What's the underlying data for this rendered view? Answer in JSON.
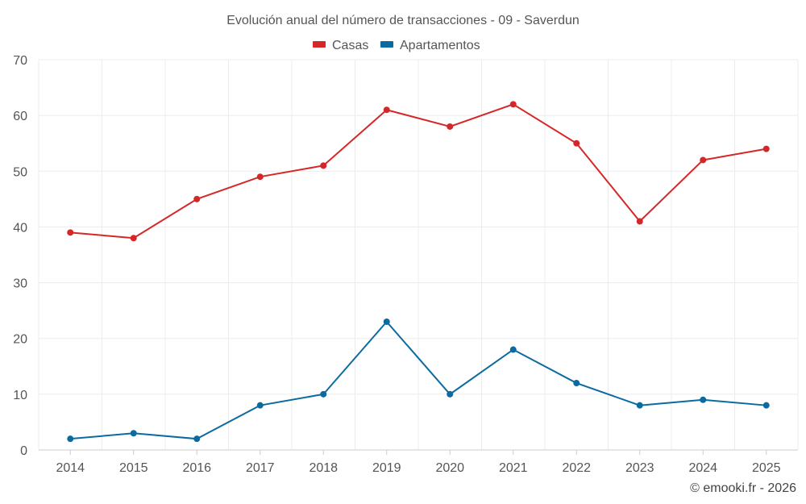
{
  "chart_data": {
    "type": "line",
    "title": "Evolución anual del número de transacciones - 09 - Saverdun",
    "xlabel": "",
    "ylabel": "",
    "categories": [
      "2014",
      "2015",
      "2016",
      "2017",
      "2018",
      "2019",
      "2020",
      "2021",
      "2022",
      "2023",
      "2024",
      "2025"
    ],
    "ylim": [
      0,
      70
    ],
    "yticks": [
      "0",
      "10",
      "20",
      "30",
      "40",
      "50",
      "60",
      "70"
    ],
    "grid": true,
    "legend_position": "top-center",
    "series": [
      {
        "name": "Casas",
        "color": "#d62728",
        "values": [
          39,
          38,
          45,
          49,
          51,
          61,
          58,
          62,
          55,
          41,
          52,
          54
        ]
      },
      {
        "name": "Apartamentos",
        "color": "#0b6ba1",
        "values": [
          2,
          3,
          2,
          8,
          10,
          23,
          10,
          18,
          12,
          8,
          9,
          8
        ]
      }
    ]
  },
  "credit": "© emooki.fr - 2026"
}
